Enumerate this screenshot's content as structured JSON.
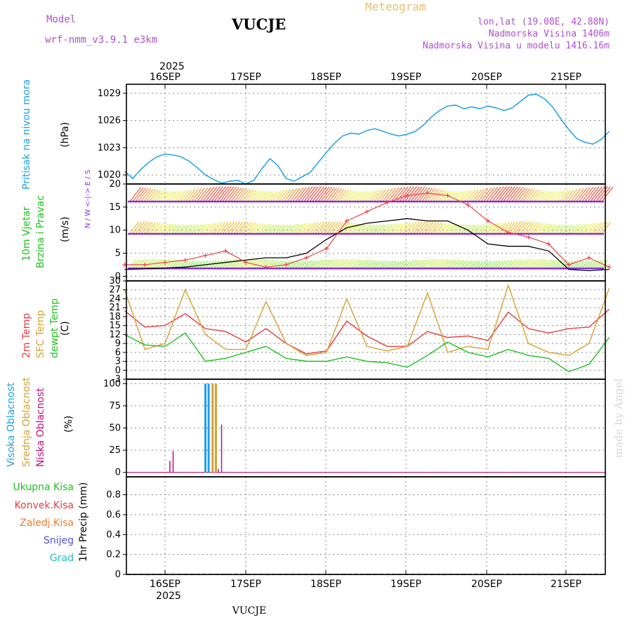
{
  "header": {
    "model_label": "Model",
    "model_name": "wrf-nmm_v3.9.1 e3km",
    "station": "VUCJE",
    "chart_type": "Meteogram",
    "lonlat": "lon,lat (19.08E, 42.88N)",
    "elevation": "Nadmorska Visina 1406m",
    "model_elevation": "Nadmorska Visina u modelu 1416.16m",
    "credit": "made by Angel",
    "footer_station": "VUCJE"
  },
  "timeline": {
    "year": "2025",
    "dates": [
      "16SEP",
      "17SEP",
      "18SEP",
      "19SEP",
      "20SEP",
      "21SEP"
    ]
  },
  "colors": {
    "pressure": "#1ea0e6",
    "temp2m": "#e83c3c",
    "sfc_temp": "#d8a030",
    "dewpoint": "#20c020",
    "gust": "#ee4444",
    "wind_speed": "#000000",
    "cloud_high": "#1ea0e6",
    "cloud_mid": "#d8a030",
    "cloud_low": "#c0107a",
    "wind_dir": "#8a2be2"
  },
  "chart_data": [
    {
      "type": "line",
      "panel": "pressure",
      "ylabel_main": "Pritisak na nivou mora",
      "unit": "(hPa)",
      "yticks": [
        1020,
        1023,
        1026,
        1029
      ],
      "ylim": [
        1019,
        1030
      ],
      "x_days": [
        0.0,
        0.1,
        0.2,
        0.3,
        0.4,
        0.5,
        0.6,
        0.7,
        0.8,
        0.9,
        1.0,
        1.1,
        1.2,
        1.3,
        1.4,
        1.5,
        1.6,
        1.7,
        1.8,
        1.9,
        2.0,
        2.1,
        2.2,
        2.3,
        2.4,
        2.5,
        2.6,
        2.7,
        2.8,
        2.9,
        3.0,
        3.1,
        3.2,
        3.3,
        3.4,
        3.5,
        3.6,
        3.7,
        3.8,
        3.9,
        4.0,
        4.1,
        4.2,
        4.3,
        4.4,
        4.5,
        4.6,
        4.7,
        4.8,
        4.9,
        5.0,
        5.1,
        5.2,
        5.3,
        5.4,
        5.5,
        5.6,
        5.7,
        5.8,
        5.9,
        6.0
      ],
      "series": [
        {
          "name": "MSLP",
          "values": [
            1020.4,
            1019.6,
            1020.6,
            1021.4,
            1022.0,
            1022.3,
            1022.2,
            1022.0,
            1021.5,
            1020.8,
            1020.0,
            1019.5,
            1019.1,
            1019.3,
            1019.4,
            1019.0,
            1019.4,
            1020.7,
            1021.8,
            1021.0,
            1019.6,
            1019.3,
            1019.8,
            1020.3,
            1021.4,
            1022.5,
            1023.5,
            1024.3,
            1024.6,
            1024.5,
            1024.9,
            1025.1,
            1024.8,
            1024.5,
            1024.3,
            1024.5,
            1024.8,
            1025.5,
            1026.4,
            1027.1,
            1027.6,
            1027.7,
            1027.3,
            1027.5,
            1027.3,
            1027.6,
            1027.4,
            1027.1,
            1027.4,
            1028.1,
            1028.8,
            1028.9,
            1028.4,
            1027.5,
            1026.2,
            1025.0,
            1024.0,
            1023.6,
            1023.4,
            1023.9,
            1024.8
          ]
        }
      ]
    },
    {
      "type": "line",
      "panel": "wind",
      "ylabel_main": "10m Vjetar",
      "ylabel_sub": "Brzina i Pravac",
      "unit": "(m/s)",
      "direction_legend": "N / W <-|-> E / S",
      "yticks": [
        0,
        5,
        10,
        15,
        20
      ],
      "ylim": [
        -1,
        20
      ],
      "x_days": [
        0.0,
        0.25,
        0.5,
        0.75,
        1.0,
        1.25,
        1.5,
        1.75,
        2.0,
        2.25,
        2.5,
        2.75,
        3.0,
        3.25,
        3.5,
        3.75,
        4.0,
        4.25,
        4.5,
        4.75,
        5.0,
        5.25,
        5.5,
        5.75,
        6.0
      ],
      "series": [
        {
          "name": "wind speed",
          "values": [
            1.5,
            1.6,
            1.8,
            2.0,
            2.5,
            3.0,
            3.5,
            4.0,
            4.0,
            5.0,
            8.0,
            10.5,
            11.5,
            12.0,
            12.5,
            12.0,
            12.0,
            10.0,
            7.0,
            6.5,
            6.5,
            5.5,
            1.5,
            1.2,
            1.5
          ]
        },
        {
          "name": "gust",
          "values": [
            2.5,
            2.5,
            3.0,
            3.5,
            4.5,
            5.5,
            3.0,
            2.0,
            2.5,
            4.0,
            6.0,
            12.0,
            14.0,
            16.0,
            17.5,
            18.0,
            17.5,
            15.5,
            12.0,
            9.5,
            8.5,
            7.0,
            2.5,
            4.0,
            2.0
          ]
        }
      ],
      "barb_rows": [
        {
          "row": "weak",
          "level": 2,
          "intensity": 0.3
        },
        {
          "row": "moderate",
          "level": 9.5,
          "intensity": 0.55
        },
        {
          "row": "strong",
          "level": 16.5,
          "intensity": 0.8
        }
      ]
    },
    {
      "type": "line",
      "panel": "temperature",
      "ylabel_lines": [
        "2m Temp",
        "SFC Temp",
        "dewpt Temp"
      ],
      "unit": "(C)",
      "yticks": [
        -3,
        0,
        3,
        6,
        9,
        12,
        15,
        18,
        21,
        24,
        27,
        30
      ],
      "ylim": [
        -3,
        30
      ],
      "x_days": [
        0.0,
        0.25,
        0.5,
        0.75,
        1.0,
        1.25,
        1.5,
        1.75,
        2.0,
        2.25,
        2.5,
        2.75,
        3.0,
        3.25,
        3.5,
        3.75,
        4.0,
        4.25,
        4.5,
        4.75,
        5.0,
        5.25,
        5.5,
        5.75,
        6.0
      ],
      "series": [
        {
          "name": "2m Temp",
          "values": [
            20.0,
            14.5,
            15.0,
            19.0,
            14.0,
            13.0,
            9.5,
            14.0,
            9.0,
            5.5,
            6.5,
            16.5,
            11.5,
            8.0,
            8.0,
            13.0,
            11.0,
            11.5,
            10.0,
            19.5,
            14.0,
            12.5,
            14.0,
            14.5,
            20.5
          ]
        },
        {
          "name": "SFC Temp",
          "values": [
            27.0,
            7.0,
            9.0,
            27.0,
            12.0,
            7.0,
            7.0,
            23.0,
            9.0,
            5.0,
            6.0,
            24.0,
            8.0,
            6.5,
            8.0,
            26.0,
            6.0,
            8.0,
            7.0,
            28.5,
            9.0,
            6.0,
            5.0,
            9.0,
            27.5
          ]
        },
        {
          "name": "dewpt Temp",
          "values": [
            12.0,
            8.5,
            8.0,
            12.5,
            3.0,
            4.0,
            6.0,
            8.0,
            4.0,
            3.0,
            3.0,
            4.5,
            3.0,
            2.5,
            1.0,
            5.0,
            9.5,
            6.0,
            4.5,
            7.0,
            5.0,
            4.0,
            -0.5,
            2.0,
            11.0
          ]
        }
      ]
    },
    {
      "type": "bar",
      "panel": "clouds",
      "ylabel_lines": [
        "Visoka Oblacnost",
        "Srednja Oblacnost",
        "Niska Oblacnost"
      ],
      "unit": "(%)",
      "yticks": [
        0,
        25,
        50,
        75,
        100
      ],
      "ylim": [
        -5,
        105
      ],
      "bars": [
        {
          "x": 0.56,
          "series": "Niska Oblacnost",
          "value": 13
        },
        {
          "x": 0.6,
          "series": "Niska Oblacnost",
          "value": 24
        },
        {
          "x": 1.0,
          "series": "Visoka Oblacnost",
          "value": 100
        },
        {
          "x": 1.04,
          "series": "Visoka Oblacnost",
          "value": 100
        },
        {
          "x": 1.09,
          "series": "Srednja Oblacnost",
          "value": 100
        },
        {
          "x": 1.13,
          "series": "Srednja Oblacnost",
          "value": 100
        },
        {
          "x": 1.2,
          "series": "Niska Oblacnost",
          "value": 54
        },
        {
          "x": 1.16,
          "series": "Niska Oblacnost",
          "value": 4
        }
      ]
    },
    {
      "type": "bar",
      "panel": "precipitation",
      "ylabel_lines": [
        "Ukupna Kisa",
        "Konvek.Kisa",
        "Zaledj.Kisa",
        "Snijeg",
        "Grad"
      ],
      "unit": "1hr Precip (mm)",
      "yticks": [
        0,
        0.2,
        0.4,
        0.6,
        0.8
      ],
      "ylim": [
        0,
        0.98
      ],
      "values": []
    }
  ]
}
